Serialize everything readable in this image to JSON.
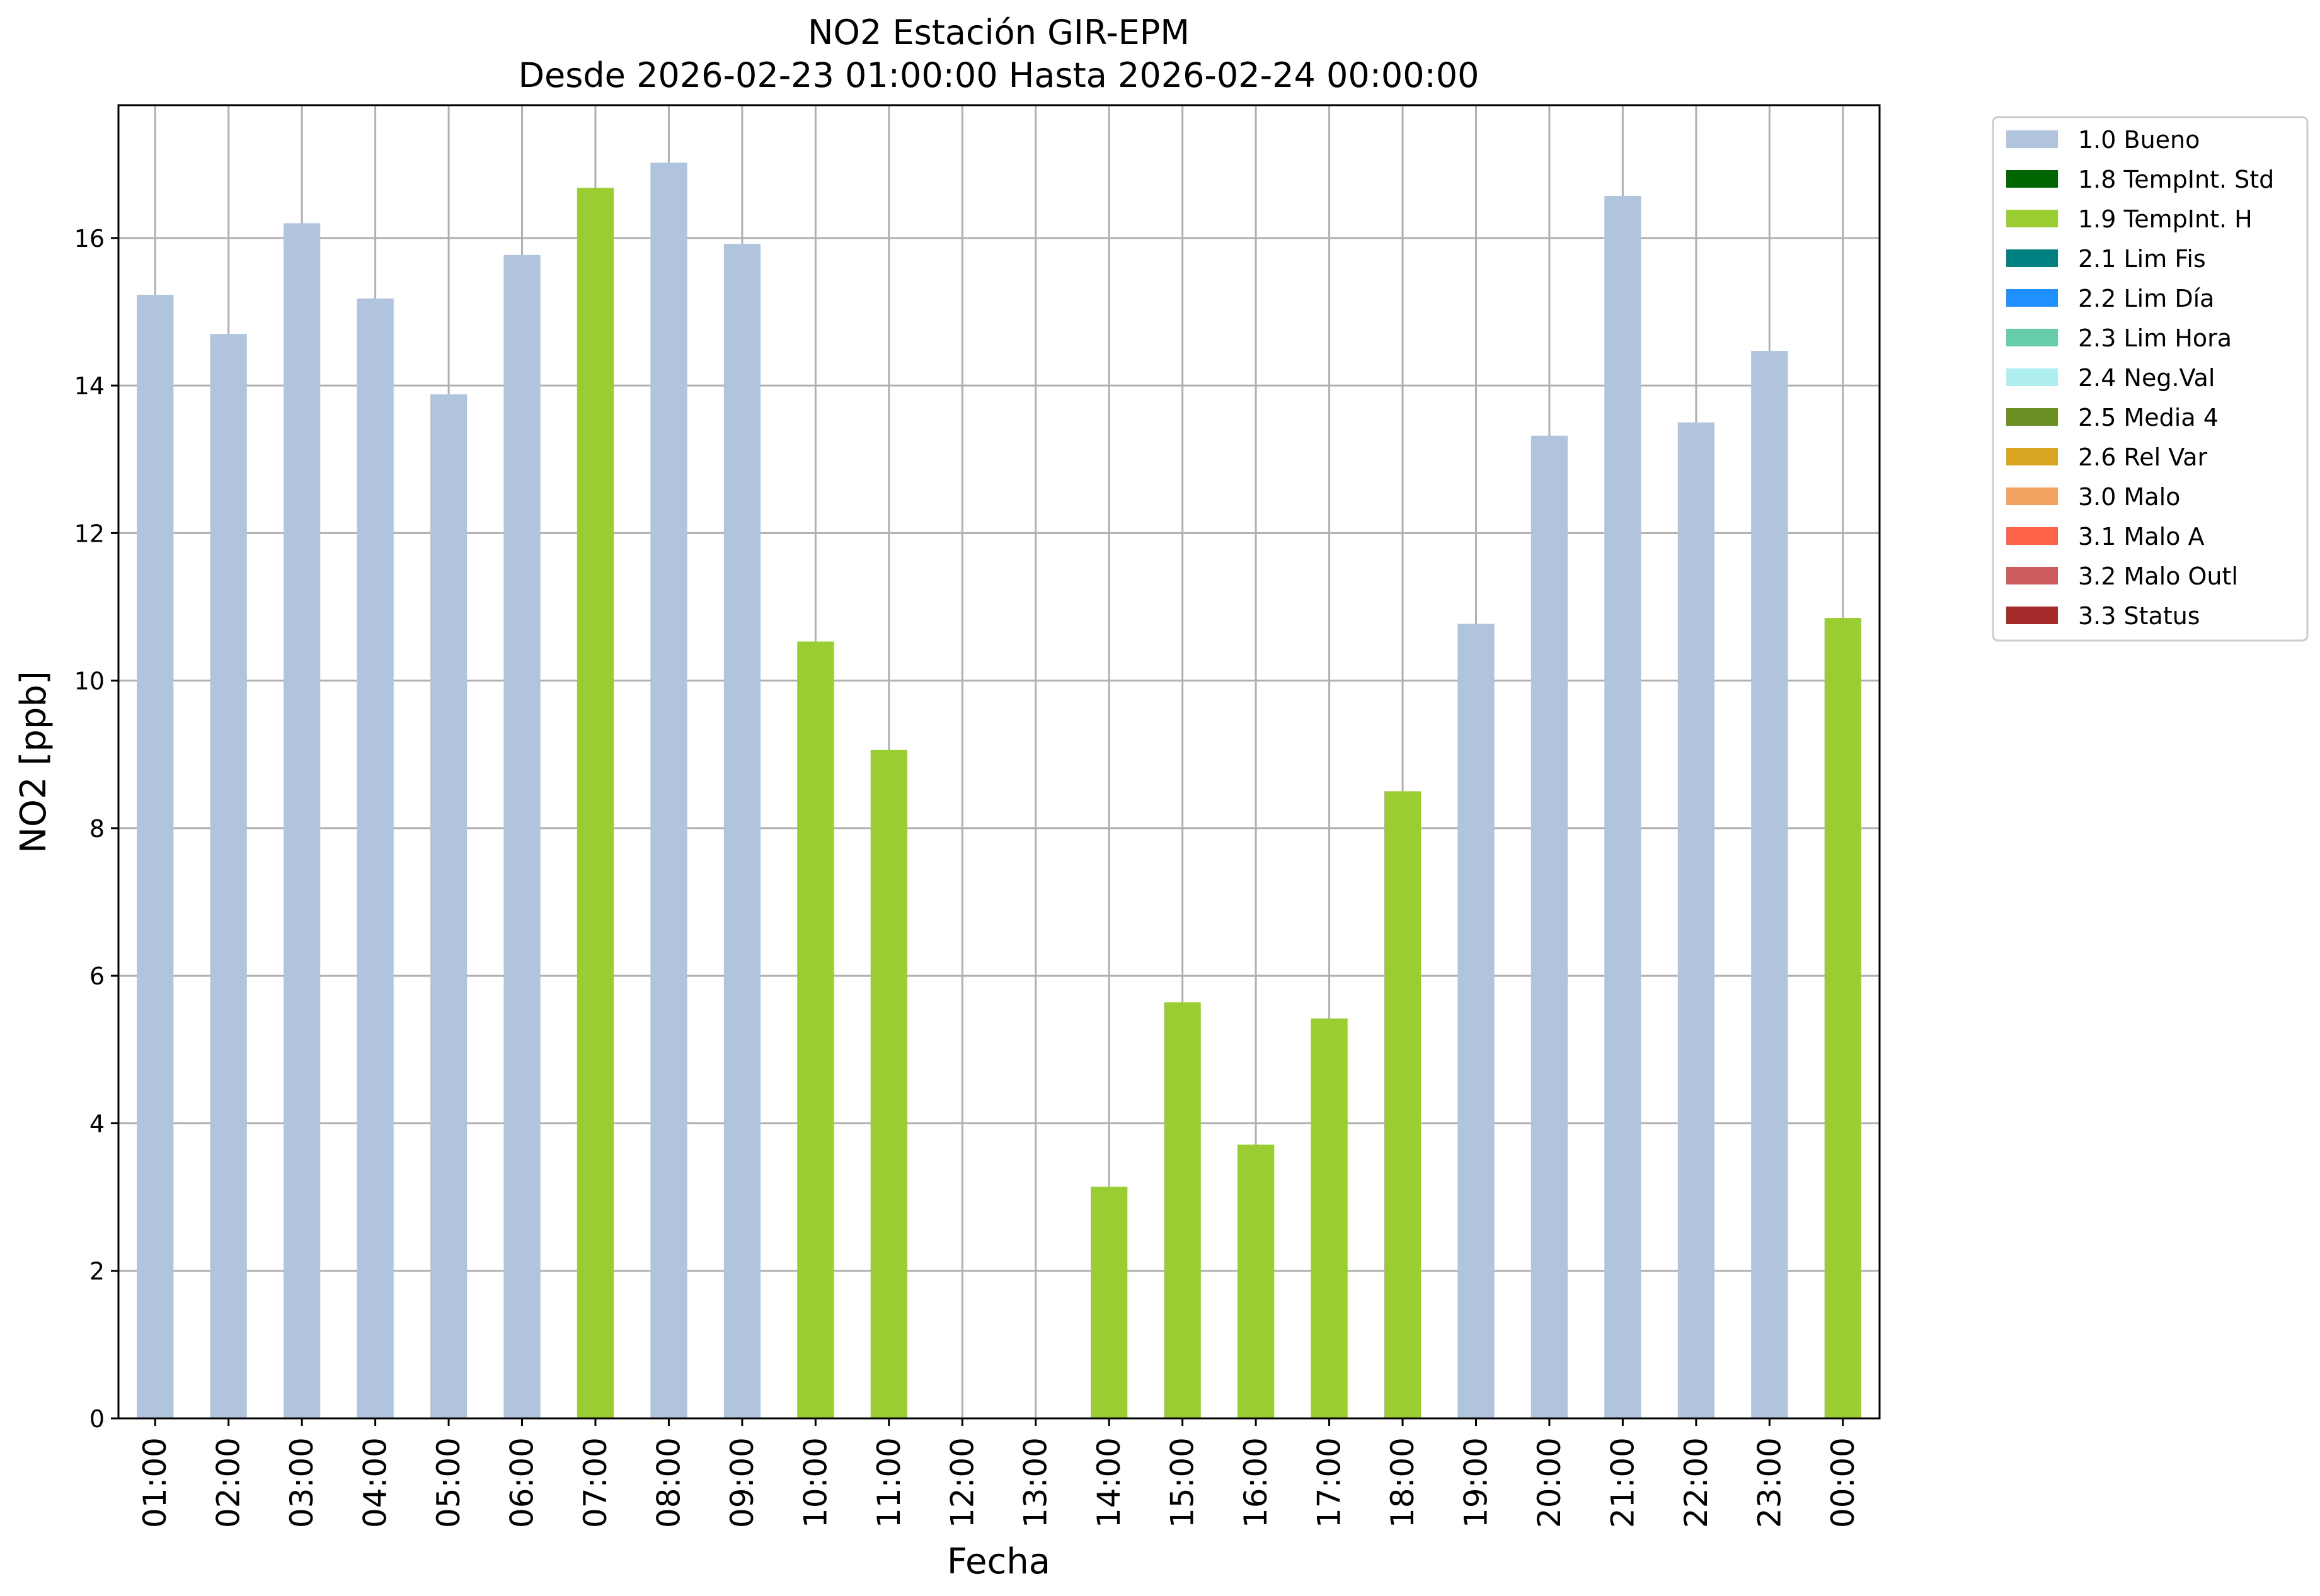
{
  "chart_data": {
    "type": "bar",
    "title": "NO2 Estación GIR-EPM",
    "subtitle": "Desde 2026-02-23 01:00:00 Hasta 2026-02-24 00:00:00",
    "xlabel": "Fecha",
    "ylabel": "NO2 [ppb]",
    "ylim": [
      0,
      17.8
    ],
    "yticks": [
      "0",
      "2",
      "4",
      "6",
      "8",
      "10",
      "12",
      "14",
      "16"
    ],
    "grid": true,
    "legend_position": "outside-top-right",
    "categories": [
      "01:00",
      "02:00",
      "03:00",
      "04:00",
      "05:00",
      "06:00",
      "07:00",
      "08:00",
      "09:00",
      "10:00",
      "11:00",
      "12:00",
      "13:00",
      "14:00",
      "15:00",
      "16:00",
      "17:00",
      "18:00",
      "19:00",
      "20:00",
      "21:00",
      "22:00",
      "23:00",
      "00:00"
    ],
    "values": [
      15.23,
      14.7,
      16.2,
      15.18,
      13.88,
      15.77,
      16.68,
      17.02,
      15.92,
      10.53,
      9.06,
      null,
      null,
      3.14,
      5.64,
      3.71,
      5.42,
      8.5,
      10.77,
      13.32,
      16.57,
      13.5,
      14.47,
      10.85
    ],
    "flags": [
      "1.0 Bueno",
      "1.0 Bueno",
      "1.0 Bueno",
      "1.0 Bueno",
      "1.0 Bueno",
      "1.0 Bueno",
      "1.9 TempInt. H",
      "1.0 Bueno",
      "1.0 Bueno",
      "1.9 TempInt. H",
      "1.9 TempInt. H",
      null,
      null,
      "1.9 TempInt. H",
      "1.9 TempInt. H",
      "1.9 TempInt. H",
      "1.9 TempInt. H",
      "1.9 TempInt. H",
      "1.0 Bueno",
      "1.0 Bueno",
      "1.0 Bueno",
      "1.0 Bueno",
      "1.0 Bueno",
      "1.9 TempInt. H"
    ],
    "legend": [
      {
        "label": "1.0 Bueno",
        "color": "#b0c4de"
      },
      {
        "label": "1.8 TempInt. Std",
        "color": "#006400"
      },
      {
        "label": "1.9 TempInt. H",
        "color": "#9acd32"
      },
      {
        "label": "2.1 Lim Fis",
        "color": "#008080"
      },
      {
        "label": "2.2 Lim Día",
        "color": "#1e90ff"
      },
      {
        "label": "2.3 Lim Hora",
        "color": "#66cdaa"
      },
      {
        "label": "2.4 Neg.Val",
        "color": "#afeeee"
      },
      {
        "label": "2.5 Media 4",
        "color": "#6b8e23"
      },
      {
        "label": "2.6 Rel Var",
        "color": "#daa520"
      },
      {
        "label": "3.0 Malo",
        "color": "#f4a460"
      },
      {
        "label": "3.1 Malo A",
        "color": "#ff6347"
      },
      {
        "label": "3.2 Malo Outl",
        "color": "#cd5c5c"
      },
      {
        "label": "3.3 Status",
        "color": "#a52a2a"
      }
    ]
  }
}
